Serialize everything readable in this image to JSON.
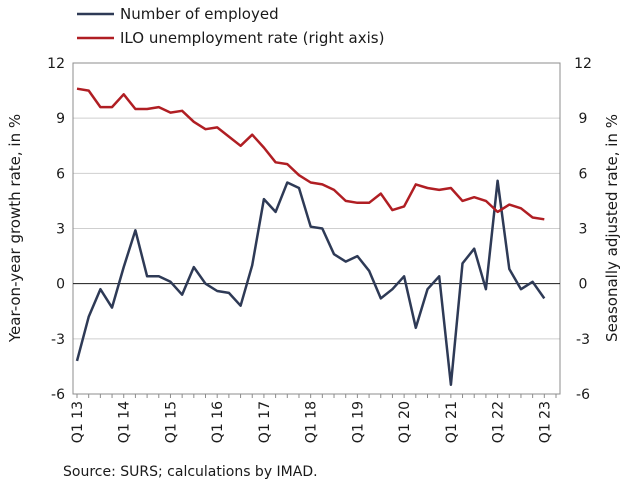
{
  "source_note": "Source: SURS; calculations by IMAD.",
  "colors": {
    "employed": "#2e3a56",
    "unemployment": "#b01e23"
  },
  "chart_data": {
    "type": "line",
    "x": [
      "Q1 13",
      "Q2 13",
      "Q3 13",
      "Q4 13",
      "Q1 14",
      "Q2 14",
      "Q3 14",
      "Q4 14",
      "Q1 15",
      "Q2 15",
      "Q3 15",
      "Q4 15",
      "Q1 16",
      "Q2 16",
      "Q3 16",
      "Q4 16",
      "Q1 17",
      "Q2 17",
      "Q3 17",
      "Q4 17",
      "Q1 18",
      "Q2 18",
      "Q3 18",
      "Q4 18",
      "Q1 19",
      "Q2 19",
      "Q3 19",
      "Q4 19",
      "Q1 20",
      "Q2 20",
      "Q3 20",
      "Q4 20",
      "Q1 21",
      "Q2 21",
      "Q3 21",
      "Q4 21",
      "Q1 22",
      "Q2 22",
      "Q3 22",
      "Q4 22",
      "Q1 23",
      "Q2 23"
    ],
    "x_tick_labels": [
      "Q1 13",
      "Q1 14",
      "Q1 15",
      "Q1 16",
      "Q1 17",
      "Q1 18",
      "Q1 19",
      "Q1 20",
      "Q1 21",
      "Q1 22",
      "Q1 23"
    ],
    "series": [
      {
        "name": "Number of employed",
        "axis": "left",
        "values": [
          -4.2,
          -1.8,
          -0.3,
          -1.3,
          0.9,
          2.9,
          0.4,
          0.4,
          0.1,
          -0.6,
          0.9,
          0.0,
          -0.4,
          -0.5,
          -1.2,
          1.0,
          4.6,
          3.9,
          5.5,
          5.2,
          3.1,
          3.0,
          1.6,
          1.2,
          1.5,
          0.7,
          -0.8,
          -0.3,
          0.4,
          -2.4,
          -0.3,
          0.4,
          -5.5,
          1.1,
          1.9,
          -0.3,
          5.6,
          0.8,
          -0.3,
          0.1,
          -0.8,
          null
        ]
      },
      {
        "name": "ILO unemployment rate (right axis)",
        "axis": "right",
        "values": [
          10.6,
          10.5,
          9.6,
          9.6,
          10.3,
          9.5,
          9.5,
          9.6,
          9.3,
          9.4,
          8.8,
          8.4,
          8.5,
          8.0,
          7.5,
          8.1,
          7.4,
          6.6,
          6.5,
          5.9,
          5.5,
          5.4,
          5.1,
          4.5,
          4.4,
          4.4,
          4.9,
          4.0,
          4.2,
          5.4,
          5.2,
          5.1,
          5.2,
          4.5,
          4.7,
          4.5,
          3.9,
          4.3,
          4.1,
          3.6,
          3.5,
          null
        ]
      }
    ],
    "y_left": {
      "label": "Year-on-year growth rate, in %",
      "ticks": [
        12,
        9,
        6,
        3,
        0,
        -3,
        -6
      ],
      "tick_labels": [
        "12",
        "9",
        "6",
        "3",
        "0",
        "-3",
        "-6"
      ],
      "lim": [
        -6,
        12
      ]
    },
    "y_right": {
      "label": "Seasonally adjusted rate, in %",
      "ticks": [
        12,
        9,
        6,
        3,
        0,
        -3,
        -6
      ],
      "tick_labels": [
        "12",
        "9",
        "6",
        "3",
        "0",
        "-3",
        "-6"
      ],
      "lim": [
        -6,
        12
      ]
    },
    "grid": "horizontal",
    "legend_position": "top-left"
  }
}
